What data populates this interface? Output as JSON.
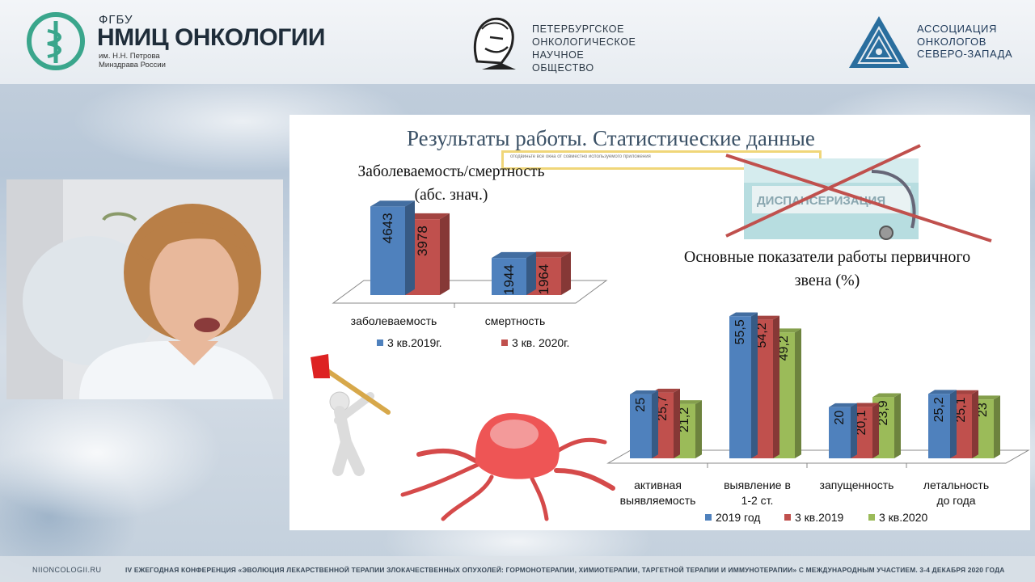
{
  "header": {
    "org1": {
      "top": "ФГБУ",
      "main": "НМИЦ ОНКОЛОГИИ",
      "sub1": "им. Н.Н. Петрова",
      "sub2": "Минздрава России"
    },
    "org2": {
      "line1": "ПЕТЕРБУРГСКОЕ",
      "line2": "ОНКОЛОГИЧЕСКОЕ",
      "line3": "НАУЧНОЕ ОБЩЕСТВО"
    },
    "org3": {
      "line1": "АССОЦИАЦИЯ",
      "line2": "ОНКОЛОГОВ",
      "line3": "СЕВЕРО-ЗАПАДА"
    }
  },
  "footer": {
    "url": "NIIONCOLOGII.RU",
    "conference": "IV ЕЖЕГОДНАЯ КОНФЕРЕНЦИЯ «ЭВОЛЮЦИЯ ЛЕКАРСТВЕННОЙ ТЕРАПИИ ЗЛОКАЧЕСТВЕННЫХ ОПУХОЛЕЙ: ГОРМОНОТЕРАПИИ, ХИМИОТЕРАПИИ, ТАРГЕТНОЙ ТЕРАПИИ И ИММУНОТЕРАПИИ» С МЕЖДУНАРОДНЫМ УЧАСТИЕМ. 3-4 ДЕКАБРЯ 2020 ГОДА"
  },
  "slide": {
    "title": "Результаты работы. Статистические данные",
    "banner_text": "отодвиньте все окна от совместно используемого приложения",
    "image_label": "ДИСПАНСЕРИЗАЦИЯ"
  },
  "colors": {
    "blue": "#4f81bd",
    "red": "#c0504d",
    "green": "#9bbb59"
  },
  "chart_data": [
    {
      "type": "bar",
      "title_line1": "Заболеваемость/смертность",
      "title_line2": "(абс. знач.)",
      "categories": [
        "заболеваемость",
        "смертность"
      ],
      "series": [
        {
          "name": "3 кв.2019г.",
          "values": [
            4643,
            1944
          ]
        },
        {
          "name": "3 кв. 2020г.",
          "values": [
            3978,
            1964
          ]
        }
      ],
      "ylim": [
        0,
        5000
      ],
      "legend": "bottom",
      "grid": false
    },
    {
      "type": "bar",
      "title_line1": "Основные показатели работы первичного",
      "title_line2": "звена (%)",
      "categories": [
        [
          "активная",
          "выявляемость"
        ],
        [
          "выявление в",
          "1-2 ст."
        ],
        [
          "запущенность"
        ],
        [
          "летальность",
          "до года"
        ]
      ],
      "series": [
        {
          "name": "2019 год",
          "values": [
            "25",
            "55,5",
            "20",
            "25,2"
          ]
        },
        {
          "name": "3 кв.2019",
          "values": [
            "25,7",
            "54,2",
            "20,1",
            "25,1"
          ]
        },
        {
          "name": "3 кв.2020",
          "values": [
            "21,2",
            "49,2",
            "23,9",
            "23"
          ]
        }
      ],
      "ylim": [
        0,
        60
      ],
      "legend": "bottom",
      "grid": false
    }
  ]
}
